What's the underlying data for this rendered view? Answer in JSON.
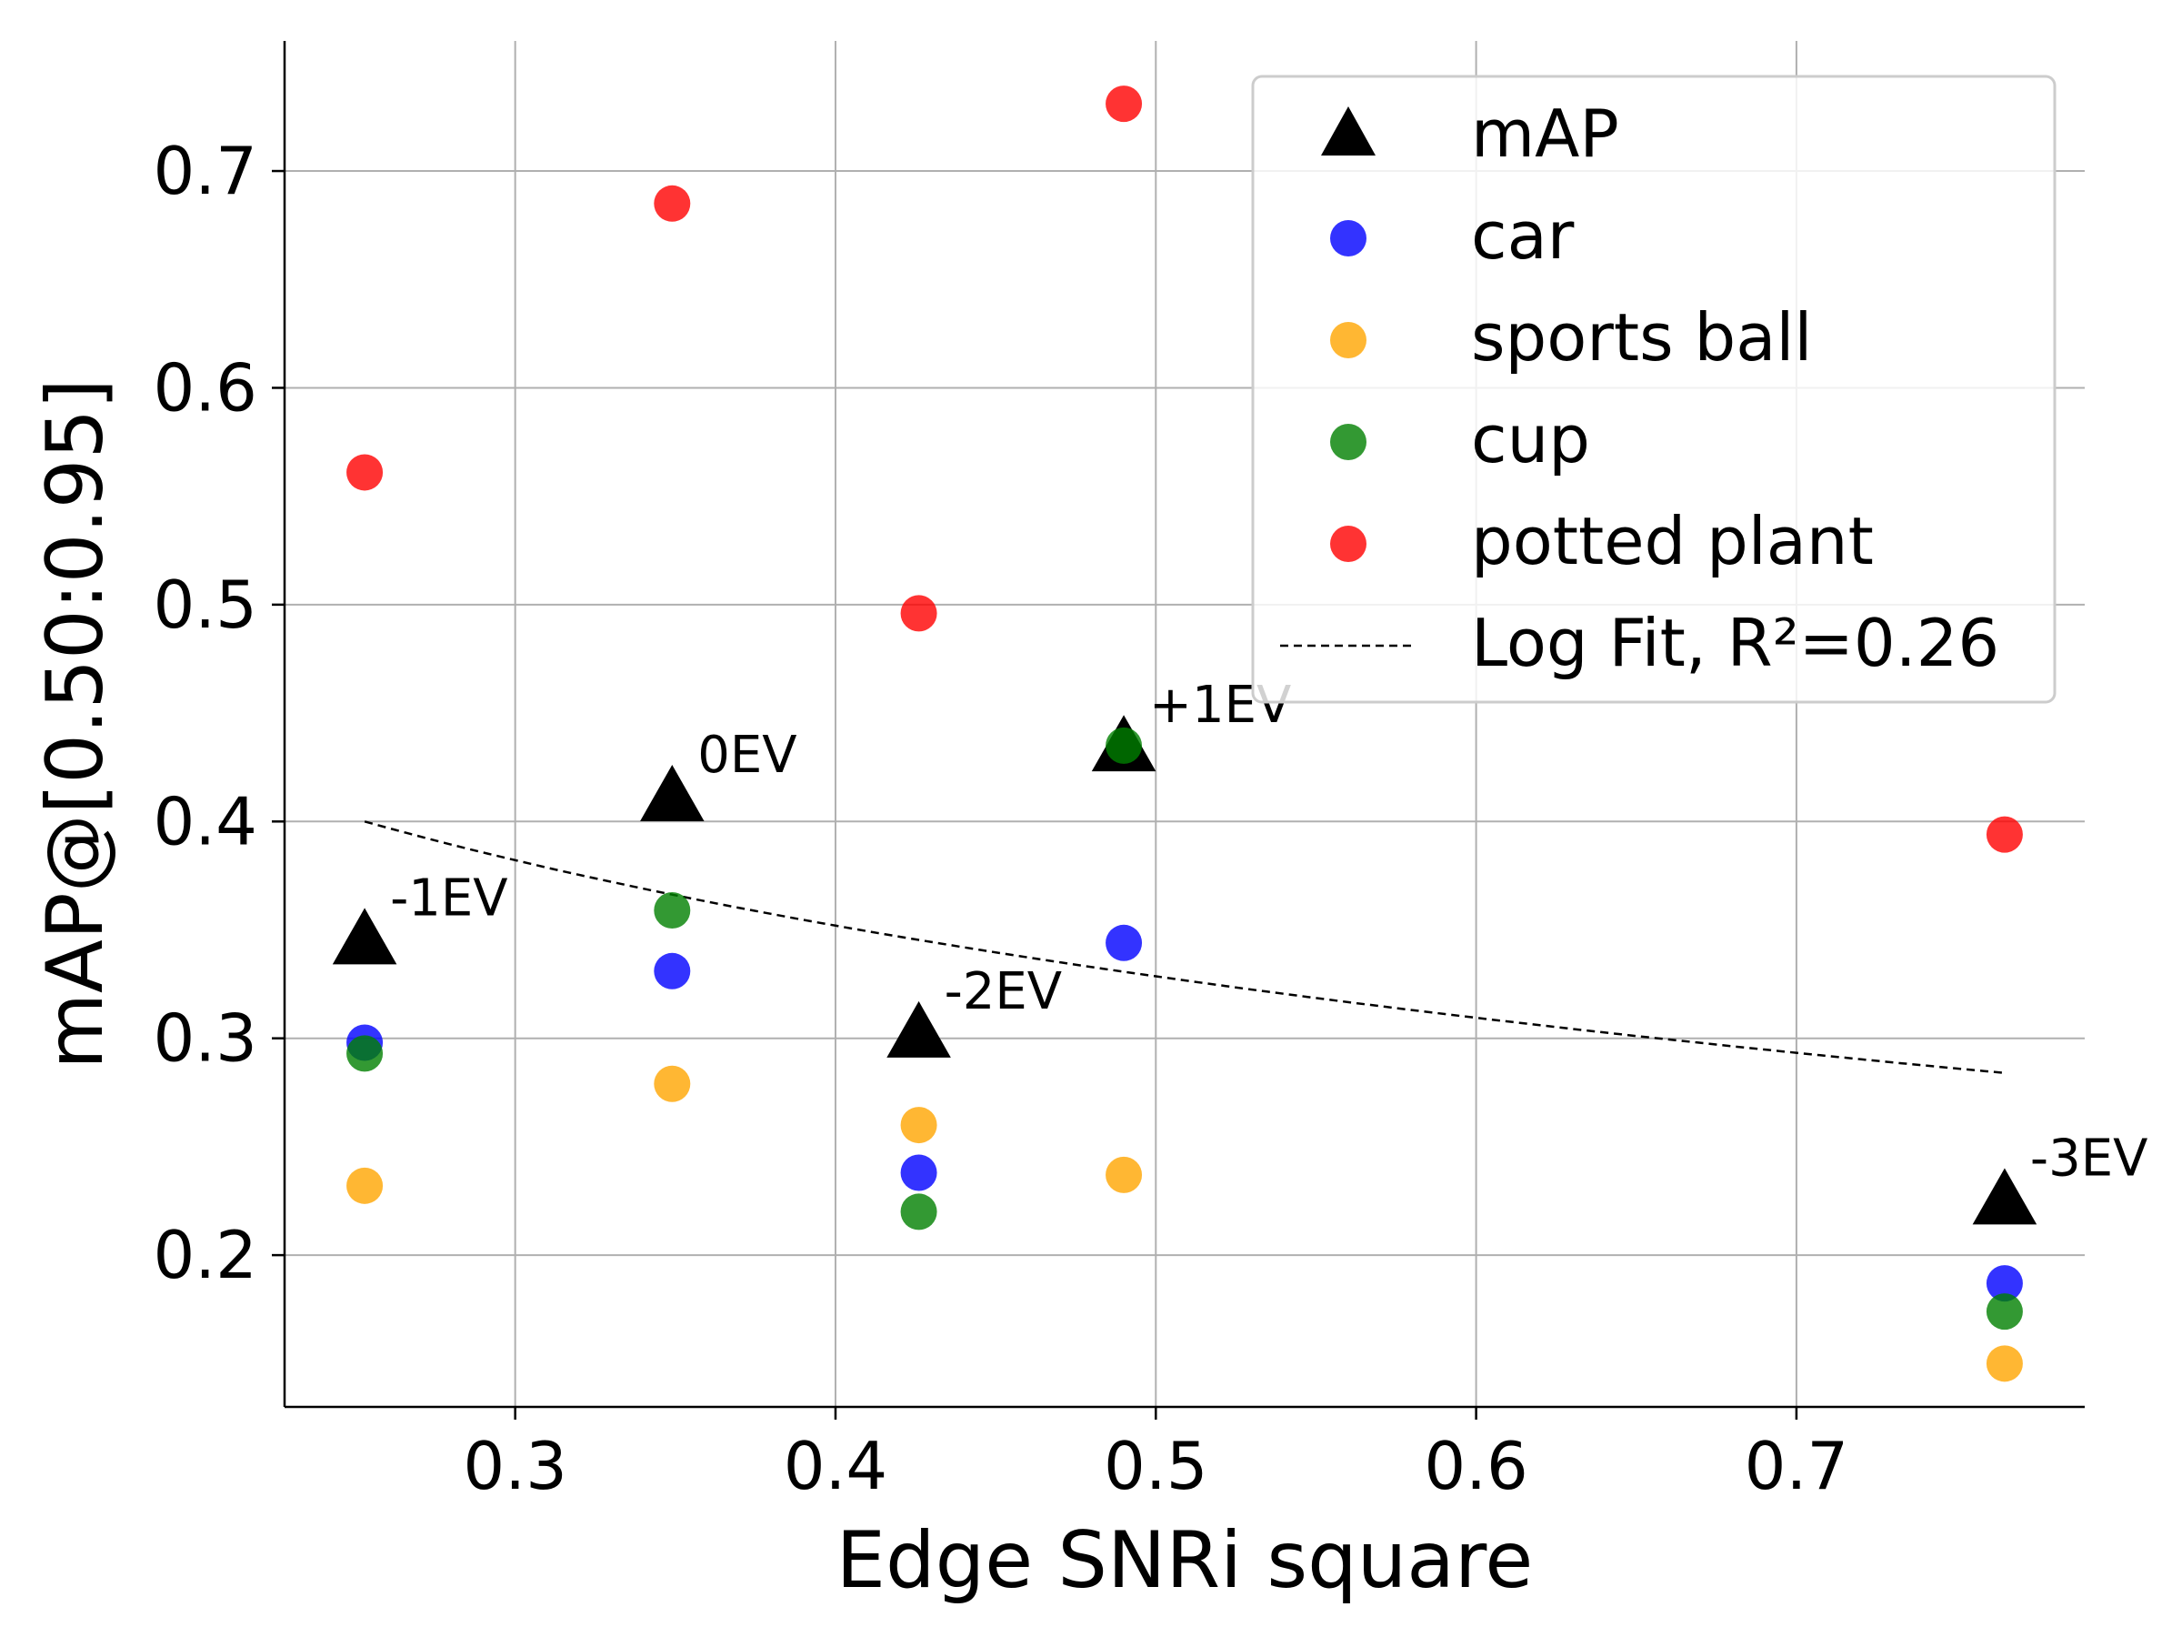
{
  "chart_data": {
    "type": "scatter",
    "xlabel": "Edge SNRi square",
    "ylabel": "mAP@[0.50:0.95]",
    "xlim": [
      0.228,
      0.79
    ],
    "ylim": [
      0.13,
      0.76
    ],
    "xticks": [
      "0.3",
      "0.4",
      "0.5",
      "0.6",
      "0.7"
    ],
    "yticks": [
      "0.2",
      "0.3",
      "0.4",
      "0.5",
      "0.6",
      "0.7"
    ],
    "grid": true,
    "legend_position": "top-right",
    "x": [
      0.253,
      0.349,
      0.426,
      0.49,
      0.765
    ],
    "series": [
      {
        "name": "mAP",
        "marker": "triangle",
        "color": "#000000",
        "values": [
          0.345,
          0.411,
          0.302,
          0.434,
          0.225
        ],
        "labels": [
          "-1EV",
          "0EV",
          "-2EV",
          "+1EV",
          "-3EV"
        ]
      },
      {
        "name": "car",
        "marker": "circle",
        "color": "#0000ff",
        "values": [
          0.298,
          0.331,
          0.238,
          0.344,
          0.187
        ]
      },
      {
        "name": "sports ball",
        "marker": "circle",
        "color": "#ffa500",
        "values": [
          0.232,
          0.279,
          0.26,
          0.237,
          0.15
        ]
      },
      {
        "name": "cup",
        "marker": "circle",
        "color": "#008000",
        "values": [
          0.293,
          0.359,
          0.22,
          0.435,
          0.174
        ]
      },
      {
        "name": "potted plant",
        "marker": "circle",
        "color": "#ff0000",
        "values": [
          0.561,
          0.685,
          0.496,
          0.731,
          0.394
        ]
      }
    ],
    "fit": {
      "name": "Log Fit, R²=0.26",
      "style": "dashed",
      "color": "#000000",
      "x_range": [
        0.253,
        0.765
      ],
      "y_at_start": 0.4,
      "y_at_end": 0.284
    }
  }
}
